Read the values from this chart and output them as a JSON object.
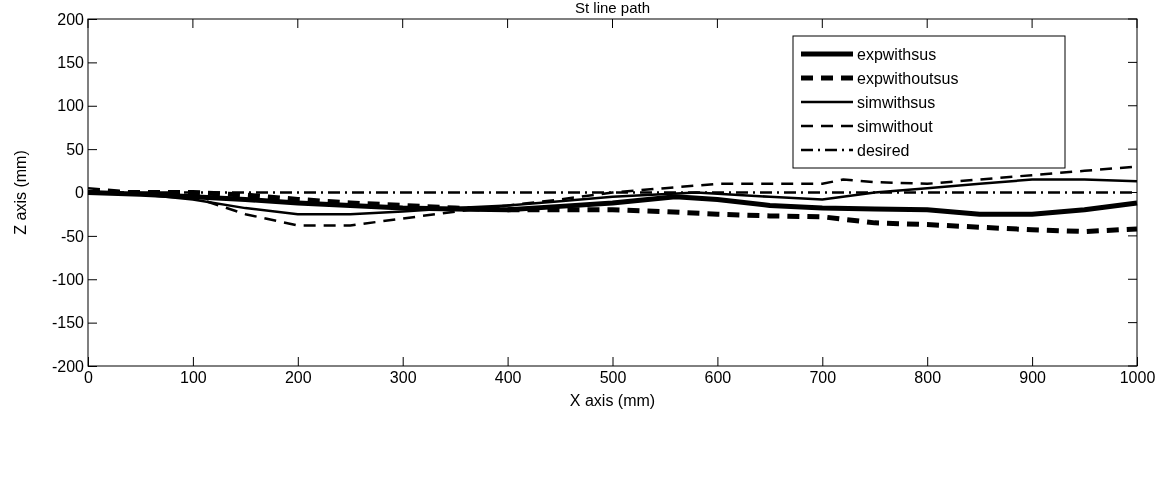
{
  "chart_data": {
    "type": "line",
    "title": "St line path",
    "xlabel": "X axis (mm)",
    "ylabel": "Z axis (mm)",
    "xlim": [
      0,
      1000
    ],
    "xticks": [
      0,
      100,
      200,
      300,
      400,
      500,
      600,
      700,
      800,
      900,
      1000
    ],
    "ylim": [
      -200,
      200
    ],
    "yticks": [
      -200,
      -150,
      -100,
      -50,
      0,
      50,
      100,
      150,
      200
    ],
    "grid": false,
    "legend": "top right",
    "series": [
      {
        "name": "expwithsus",
        "color": "#000000",
        "line_style": "solid",
        "x": [
          0,
          50,
          100,
          150,
          200,
          250,
          300,
          350,
          400,
          450,
          500,
          560,
          600,
          650,
          700,
          750,
          800,
          850,
          900,
          950,
          1000
        ],
        "values": [
          0,
          -2,
          -5,
          -8,
          -12,
          -15,
          -18,
          -19,
          -20,
          -16,
          -12,
          -5,
          -8,
          -15,
          -18,
          -19,
          -20,
          -25,
          -25,
          -20,
          -12
        ]
      },
      {
        "name": "expwithoutsus",
        "color": "#000000",
        "line_style": "dashed",
        "x": [
          0,
          50,
          100,
          150,
          200,
          250,
          300,
          350,
          400,
          450,
          500,
          550,
          600,
          650,
          700,
          750,
          800,
          850,
          900,
          950,
          1000
        ],
        "values": [
          0,
          0,
          0,
          -3,
          -8,
          -12,
          -15,
          -18,
          -20,
          -20,
          -20,
          -22,
          -25,
          -27,
          -28,
          -35,
          -37,
          -40,
          -43,
          -45,
          -42
        ]
      },
      {
        "name": "simwithsus",
        "color": "#000000",
        "line_style": "solid",
        "x": [
          0,
          50,
          100,
          150,
          200,
          250,
          300,
          350,
          400,
          450,
          500,
          580,
          650,
          700,
          750,
          800,
          850,
          900,
          950,
          1000
        ],
        "values": [
          0,
          -2,
          -8,
          -18,
          -25,
          -25,
          -22,
          -18,
          -15,
          -10,
          -5,
          0,
          -5,
          -8,
          0,
          5,
          10,
          15,
          15,
          13
        ]
      },
      {
        "name": "simwithout",
        "color": "#000000",
        "line_style": "dashed",
        "x": [
          0,
          50,
          100,
          150,
          200,
          250,
          300,
          350,
          400,
          450,
          500,
          550,
          600,
          650,
          700,
          720,
          750,
          800,
          850,
          900,
          950,
          1000
        ],
        "values": [
          5,
          0,
          -5,
          -25,
          -38,
          -38,
          -30,
          -22,
          -15,
          -8,
          0,
          5,
          10,
          10,
          10,
          15,
          12,
          10,
          15,
          20,
          25,
          30
        ]
      },
      {
        "name": "desired",
        "color": "#000000",
        "line_style": "dashdot",
        "x": [
          0,
          1000
        ],
        "values": [
          0,
          0
        ]
      }
    ]
  }
}
